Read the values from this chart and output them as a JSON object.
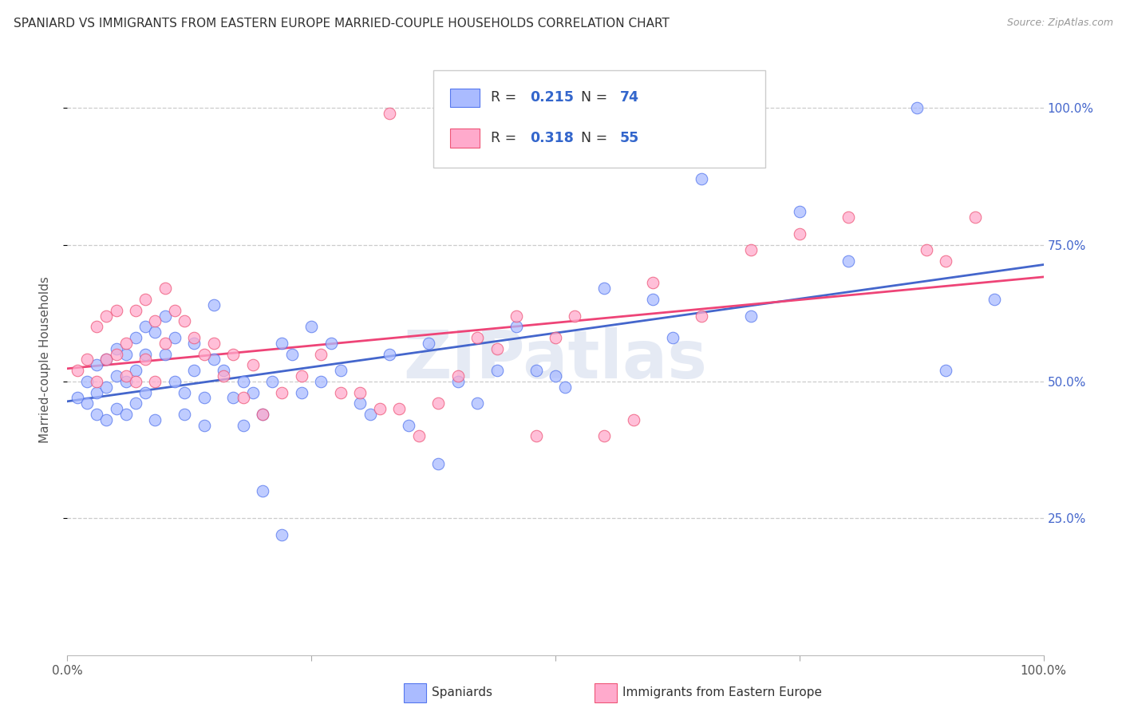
{
  "title": "SPANIARD VS IMMIGRANTS FROM EASTERN EUROPE MARRIED-COUPLE HOUSEHOLDS CORRELATION CHART",
  "source": "Source: ZipAtlas.com",
  "ylabel": "Married-couple Households",
  "legend_label1": "Spaniards",
  "legend_label2": "Immigrants from Eastern Europe",
  "R1": "0.215",
  "N1": "74",
  "R2": "0.318",
  "N2": "55",
  "color_blue": "#AABBFF",
  "color_pink": "#FFAACC",
  "edge_blue": "#5577EE",
  "edge_pink": "#EE5577",
  "line_blue": "#4466CC",
  "line_pink": "#EE4477",
  "watermark": "ZIPatlas",
  "blue_x": [
    0.01,
    0.02,
    0.02,
    0.03,
    0.03,
    0.03,
    0.04,
    0.04,
    0.04,
    0.05,
    0.05,
    0.05,
    0.06,
    0.06,
    0.06,
    0.07,
    0.07,
    0.07,
    0.08,
    0.08,
    0.08,
    0.09,
    0.09,
    0.1,
    0.1,
    0.11,
    0.11,
    0.12,
    0.12,
    0.13,
    0.13,
    0.14,
    0.14,
    0.15,
    0.15,
    0.16,
    0.17,
    0.18,
    0.18,
    0.19,
    0.2,
    0.21,
    0.22,
    0.23,
    0.24,
    0.25,
    0.26,
    0.27,
    0.28,
    0.3,
    0.31,
    0.33,
    0.35,
    0.37,
    0.4,
    0.42,
    0.44,
    0.46,
    0.48,
    0.5,
    0.51,
    0.55,
    0.6,
    0.62,
    0.65,
    0.7,
    0.75,
    0.8,
    0.87,
    0.9,
    0.95,
    0.2,
    0.22,
    0.38
  ],
  "blue_y": [
    0.47,
    0.5,
    0.46,
    0.53,
    0.48,
    0.44,
    0.54,
    0.49,
    0.43,
    0.56,
    0.51,
    0.45,
    0.55,
    0.5,
    0.44,
    0.58,
    0.52,
    0.46,
    0.6,
    0.55,
    0.48,
    0.59,
    0.43,
    0.62,
    0.55,
    0.58,
    0.5,
    0.48,
    0.44,
    0.57,
    0.52,
    0.47,
    0.42,
    0.64,
    0.54,
    0.52,
    0.47,
    0.42,
    0.5,
    0.48,
    0.44,
    0.5,
    0.57,
    0.55,
    0.48,
    0.6,
    0.5,
    0.57,
    0.52,
    0.46,
    0.44,
    0.55,
    0.42,
    0.57,
    0.5,
    0.46,
    0.52,
    0.6,
    0.52,
    0.51,
    0.49,
    0.67,
    0.65,
    0.58,
    0.87,
    0.62,
    0.81,
    0.72,
    1.0,
    0.52,
    0.65,
    0.3,
    0.22,
    0.35
  ],
  "pink_x": [
    0.01,
    0.02,
    0.03,
    0.03,
    0.04,
    0.04,
    0.05,
    0.05,
    0.06,
    0.06,
    0.07,
    0.07,
    0.08,
    0.08,
    0.09,
    0.09,
    0.1,
    0.1,
    0.11,
    0.12,
    0.13,
    0.14,
    0.15,
    0.16,
    0.17,
    0.18,
    0.19,
    0.2,
    0.22,
    0.24,
    0.26,
    0.28,
    0.3,
    0.32,
    0.34,
    0.36,
    0.38,
    0.4,
    0.42,
    0.44,
    0.46,
    0.48,
    0.5,
    0.52,
    0.55,
    0.58,
    0.6,
    0.65,
    0.7,
    0.75,
    0.8,
    0.88,
    0.9,
    0.93,
    0.33
  ],
  "pink_y": [
    0.52,
    0.54,
    0.6,
    0.5,
    0.62,
    0.54,
    0.63,
    0.55,
    0.57,
    0.51,
    0.63,
    0.5,
    0.65,
    0.54,
    0.61,
    0.5,
    0.67,
    0.57,
    0.63,
    0.61,
    0.58,
    0.55,
    0.57,
    0.51,
    0.55,
    0.47,
    0.53,
    0.44,
    0.48,
    0.51,
    0.55,
    0.48,
    0.48,
    0.45,
    0.45,
    0.4,
    0.46,
    0.51,
    0.58,
    0.56,
    0.62,
    0.4,
    0.58,
    0.62,
    0.4,
    0.43,
    0.68,
    0.62,
    0.74,
    0.77,
    0.8,
    0.74,
    0.72,
    0.8,
    0.99
  ]
}
